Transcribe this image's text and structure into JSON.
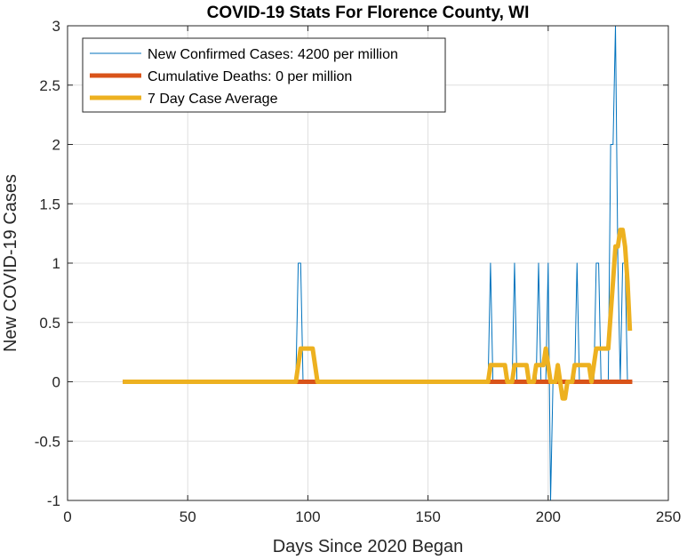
{
  "chart_data": {
    "type": "line",
    "title": "COVID-19 Stats For Florence County, WI",
    "xlabel": "Days Since 2020 Began",
    "ylabel": "New COVID-19 Cases",
    "xlim": [
      0,
      250
    ],
    "ylim": [
      -1,
      3
    ],
    "xticks": [
      0,
      50,
      100,
      150,
      200,
      250
    ],
    "yticks": [
      -1,
      -0.5,
      0,
      0.5,
      1,
      1.5,
      2,
      2.5,
      3
    ],
    "grid": true,
    "legend_position": "top-left",
    "series": [
      {
        "name": "New Confirmed Cases: 4200 per million",
        "color": "#0072BD",
        "line_width": "thin",
        "points": [
          [
            23,
            0
          ],
          [
            95,
            0
          ],
          [
            96,
            1
          ],
          [
            97,
            1
          ],
          [
            98,
            0
          ],
          [
            175,
            0
          ],
          [
            176,
            1
          ],
          [
            177,
            0
          ],
          [
            185,
            0
          ],
          [
            186,
            1
          ],
          [
            187,
            0
          ],
          [
            195,
            0
          ],
          [
            196,
            1
          ],
          [
            197,
            0
          ],
          [
            199,
            0
          ],
          [
            200,
            1
          ],
          [
            201,
            -1
          ],
          [
            202,
            0
          ],
          [
            211,
            0
          ],
          [
            212,
            1
          ],
          [
            213,
            0
          ],
          [
            219,
            0
          ],
          [
            220,
            1
          ],
          [
            221,
            1
          ],
          [
            222,
            0
          ],
          [
            225,
            0
          ],
          [
            226,
            2
          ],
          [
            227,
            2
          ],
          [
            228,
            3
          ],
          [
            229,
            1
          ],
          [
            230,
            0
          ],
          [
            231,
            1
          ],
          [
            232,
            1
          ],
          [
            233,
            0
          ],
          [
            235,
            0
          ]
        ]
      },
      {
        "name": "Cumulative Deaths: 0 per million",
        "color": "#D95319",
        "line_width": "thick",
        "points": [
          [
            23,
            0
          ],
          [
            235,
            0
          ]
        ]
      },
      {
        "name": "7 Day Case Average",
        "color": "#EDB120",
        "line_width": "thick",
        "points": [
          [
            23,
            0
          ],
          [
            95,
            0
          ],
          [
            96,
            0.14
          ],
          [
            97,
            0.28
          ],
          [
            102,
            0.28
          ],
          [
            103,
            0.14
          ],
          [
            104,
            0
          ],
          [
            175,
            0
          ],
          [
            176,
            0.14
          ],
          [
            182,
            0.14
          ],
          [
            183,
            0
          ],
          [
            185,
            0
          ],
          [
            186,
            0.14
          ],
          [
            191,
            0.14
          ],
          [
            192,
            0
          ],
          [
            194,
            0
          ],
          [
            195,
            0.14
          ],
          [
            198,
            0.14
          ],
          [
            199,
            0.28
          ],
          [
            200,
            0.14
          ],
          [
            201,
            0
          ],
          [
            203,
            0
          ],
          [
            204,
            0.14
          ],
          [
            205,
            0
          ],
          [
            206,
            -0.14
          ],
          [
            207,
            -0.14
          ],
          [
            208,
            0
          ],
          [
            210,
            0
          ],
          [
            211,
            0.14
          ],
          [
            217,
            0.14
          ],
          [
            218,
            0
          ],
          [
            219,
            0.14
          ],
          [
            220,
            0.28
          ],
          [
            225,
            0.28
          ],
          [
            226,
            0.57
          ],
          [
            227,
            0.85
          ],
          [
            228,
            1.14
          ],
          [
            229,
            1.14
          ],
          [
            230,
            1.28
          ],
          [
            231,
            1.28
          ],
          [
            232,
            1.14
          ],
          [
            233,
            0.85
          ],
          [
            234,
            0.43
          ]
        ]
      }
    ]
  }
}
